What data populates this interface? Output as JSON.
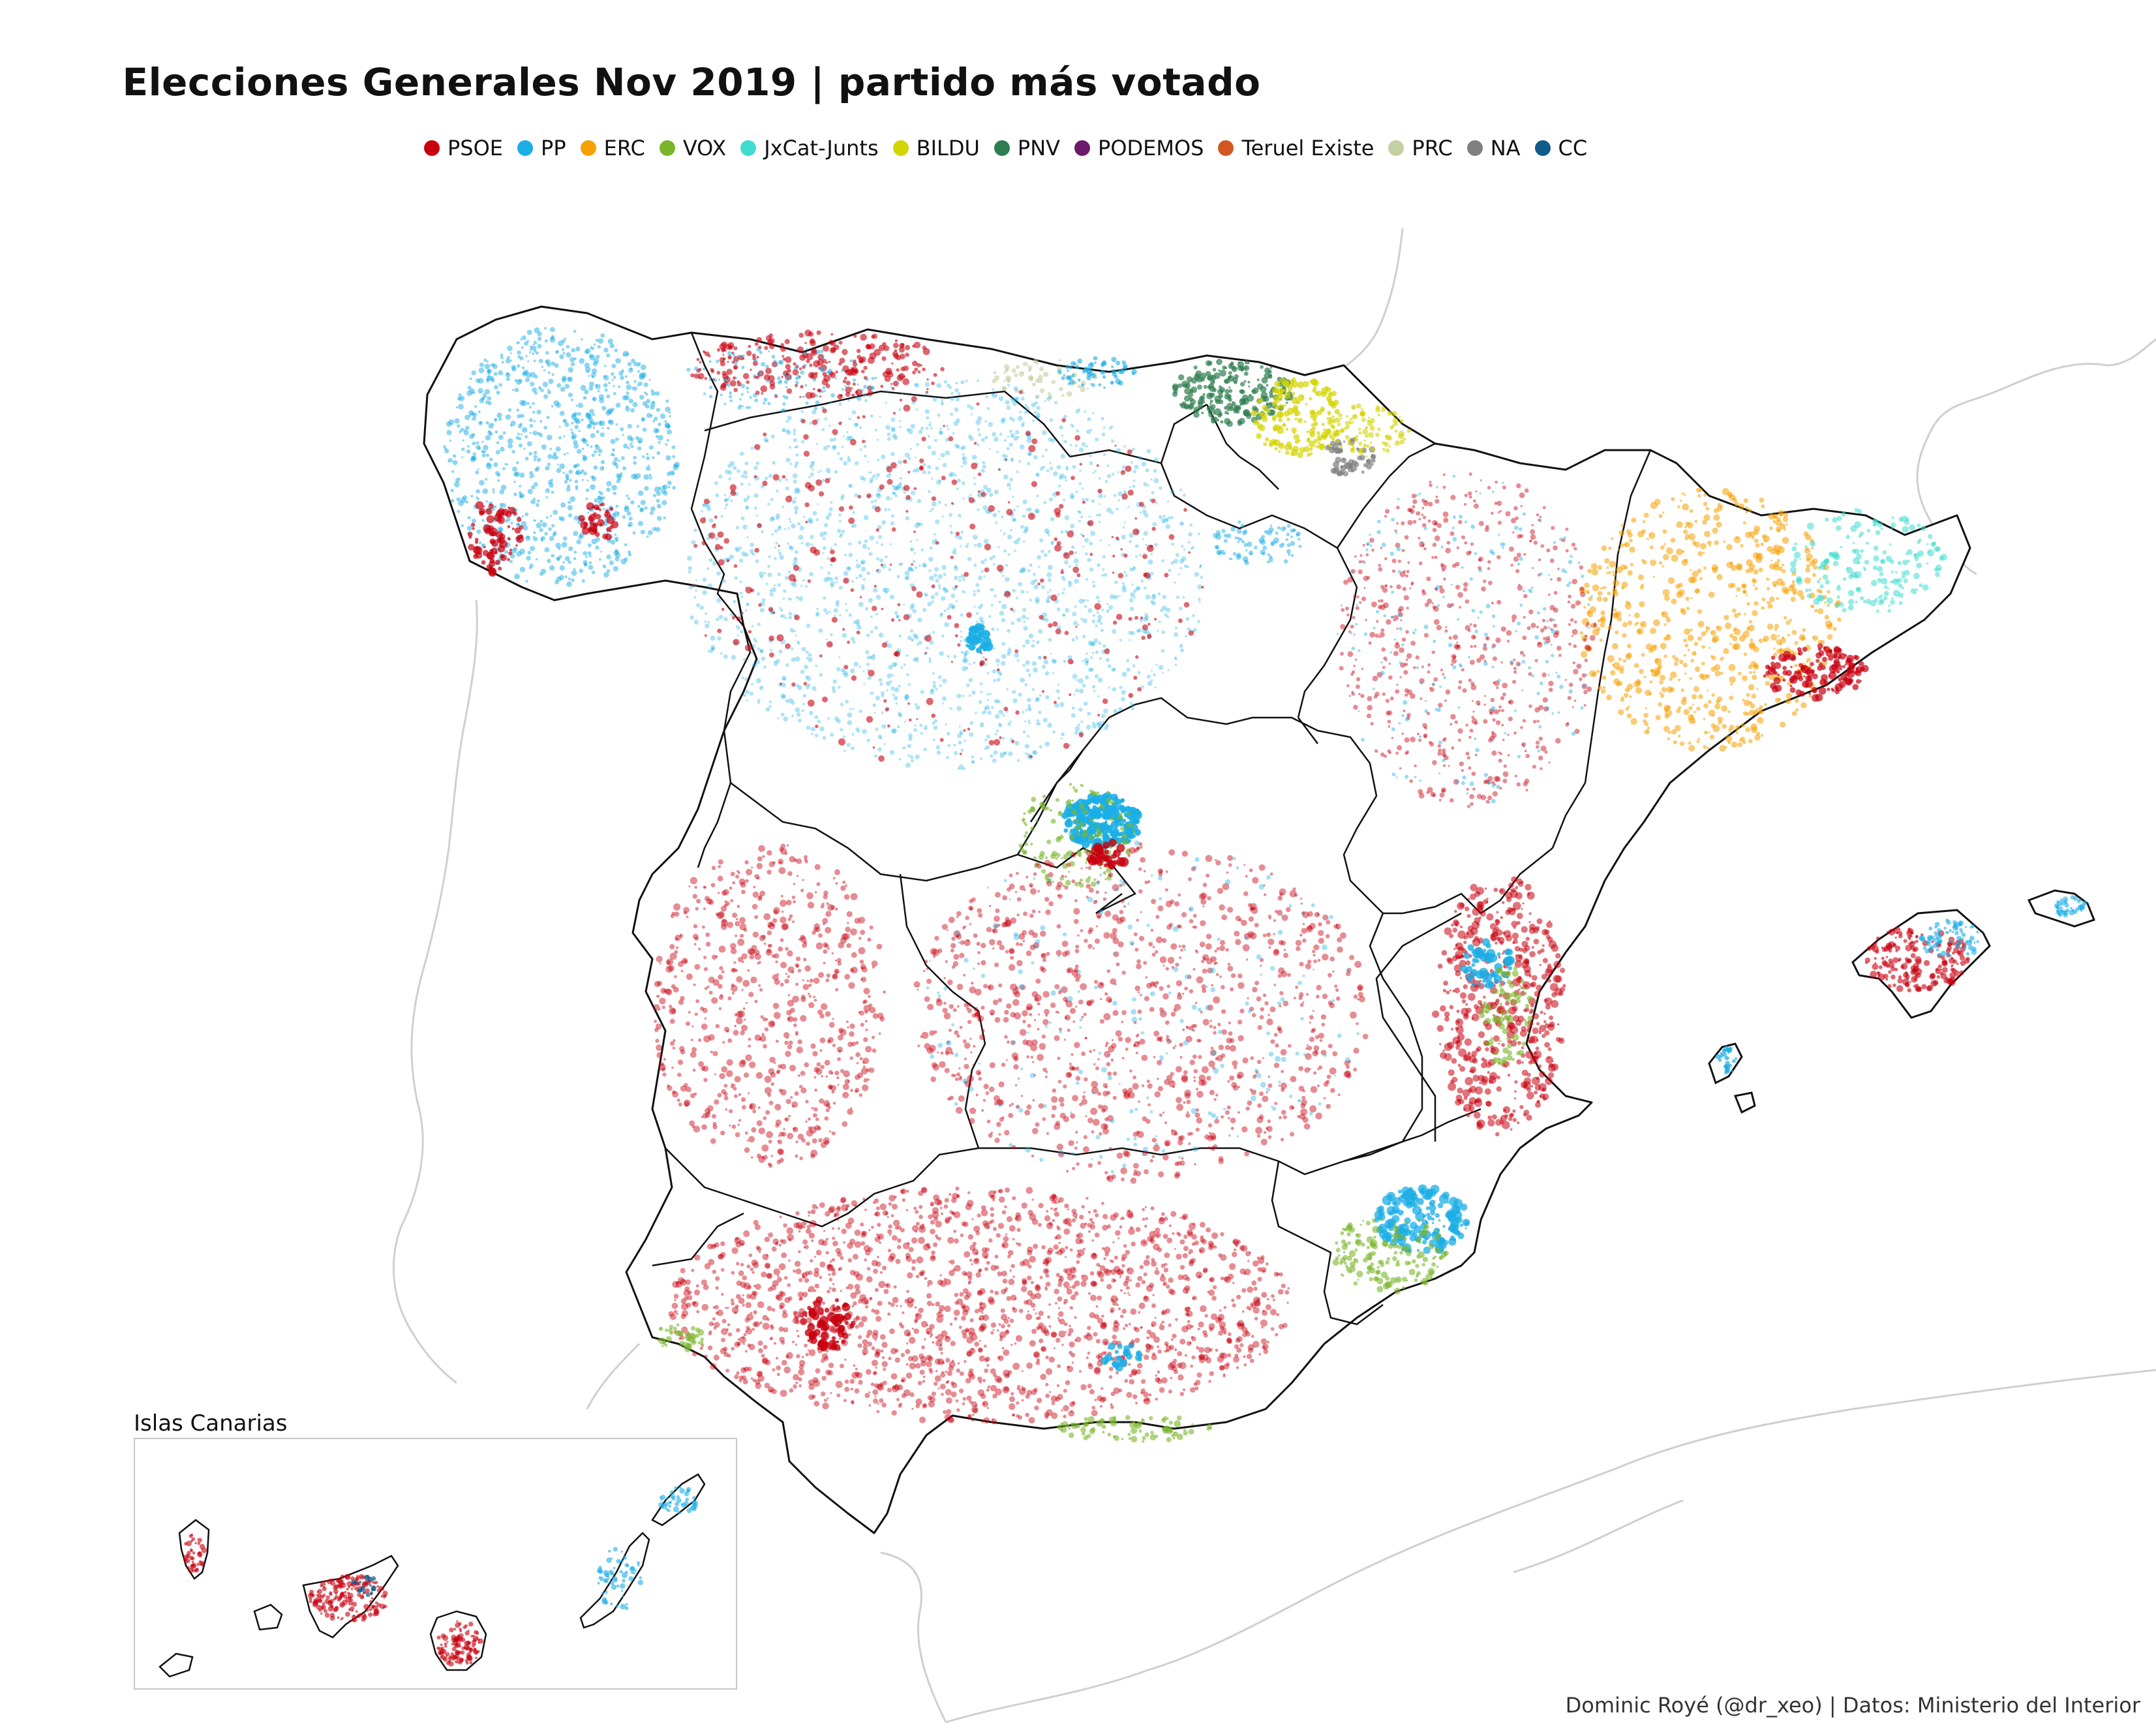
{
  "map": {
    "title": "Elecciones Generales Nov 2019 | partido más votado",
    "legend": [
      {
        "label": "PSOE",
        "color": "#C8000F"
      },
      {
        "label": "PP",
        "color": "#1BAEE6"
      },
      {
        "label": "ERC",
        "color": "#F5A100"
      },
      {
        "label": "VOX",
        "color": "#7AB52A"
      },
      {
        "label": "JxCat-Junts",
        "color": "#40DCD0"
      },
      {
        "label": "BILDU",
        "color": "#D4D400"
      },
      {
        "label": "PNV",
        "color": "#2E7D50"
      },
      {
        "label": "PODEMOS",
        "color": "#6A1B6A"
      },
      {
        "label": "Teruel Existe",
        "color": "#D2571E"
      },
      {
        "label": "PRC",
        "color": "#C2D1A0"
      },
      {
        "label": "NA",
        "color": "#808080"
      },
      {
        "label": "CC",
        "color": "#0F5C8A"
      }
    ],
    "inset_title": "Islas Canarias",
    "caption": "Dominic Royé (@dr_xeo) | Datos: Ministerio del Interior"
  }
}
